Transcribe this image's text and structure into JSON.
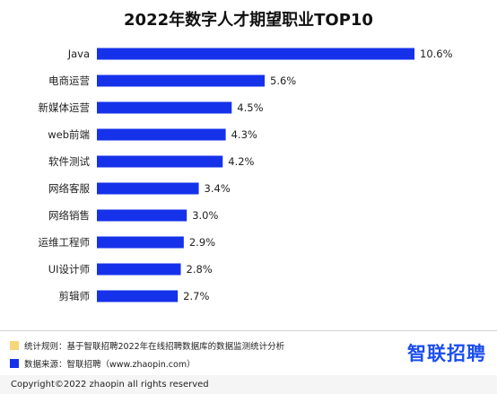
{
  "chart_data": {
    "type": "bar",
    "orientation": "horizontal",
    "title": "2022年数字人才期望职业TOP10",
    "categories": [
      "Java",
      "电商运营",
      "新媒体运营",
      "web前端",
      "软件测试",
      "网络客服",
      "网络销售",
      "运维工程师",
      "UI设计师",
      "剪辑师"
    ],
    "values": [
      10.6,
      5.6,
      4.5,
      4.3,
      4.2,
      3.4,
      3.0,
      2.9,
      2.8,
      2.7
    ],
    "value_labels": [
      "10.6%",
      "5.6%",
      "4.5%",
      "4.3%",
      "4.2%",
      "3.4%",
      "3.0%",
      "2.9%",
      "2.8%",
      "2.7%"
    ],
    "xlabel": "",
    "ylabel": "",
    "xlim": [
      0,
      10.6
    ],
    "grid": false,
    "bar_color": "#1532ea"
  },
  "notes": [
    {
      "text": "统计规则：基于智联招聘2022年在线招聘数据库的数据监测统计分析",
      "color": "#f7d57a"
    },
    {
      "text": "数据来源：智联招聘（www.zhaopin.com）",
      "color": "#1532ea"
    }
  ],
  "logo": {
    "text": "智联招聘",
    "color": "#1b4ef0"
  },
  "copyright": "Copyright©2022 zhaopin all rights reserved"
}
